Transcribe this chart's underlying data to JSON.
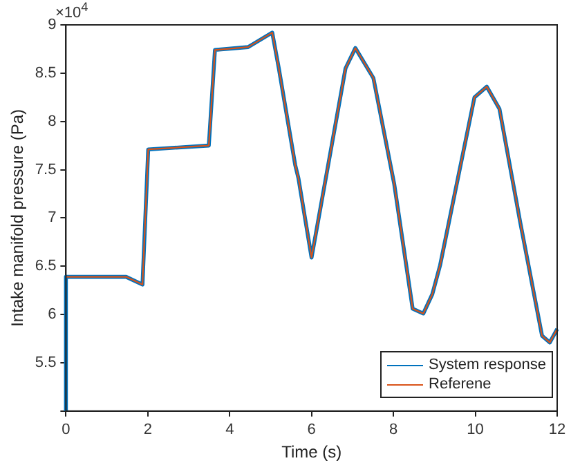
{
  "chart_data": {
    "type": "line",
    "xlabel": "Time (s)",
    "ylabel": "Intake manifold pressure (Pa)",
    "annotations": [
      "×10$^{4}$"
    ],
    "xlim": [
      0,
      12
    ],
    "xticks": [
      0,
      2,
      4,
      6,
      8,
      10,
      12
    ],
    "ylim": [
      5,
      9
    ],
    "yticks": [
      {
        "value": 5,
        "label": null
      },
      5.5,
      6,
      6.5,
      7,
      7.5,
      8,
      8.5,
      9
    ],
    "grid": false,
    "legend": "bottom right",
    "marker": "none",
    "line_style": "solid",
    "series": [
      {
        "name": "System response",
        "color": "#0072bd",
        "x": [
          0,
          0,
          1.47,
          1.87,
          2.01,
          3.49,
          3.64,
          4.45,
          5.04,
          5.2,
          5.6,
          5.68,
          6.0,
          6.83,
          7.07,
          7.51,
          8.02,
          8.47,
          8.73,
          8.95,
          9.14,
          9.98,
          10.28,
          10.59,
          11.1,
          11.63,
          11.82,
          12
        ],
        "values": [
          5,
          6.39,
          6.39,
          6.31,
          7.71,
          7.75,
          8.74,
          8.77,
          8.92,
          8.55,
          7.55,
          7.41,
          6.59,
          8.55,
          8.76,
          8.45,
          7.35,
          6.06,
          6.01,
          6.21,
          6.51,
          8.25,
          8.36,
          8.13,
          6.95,
          5.78,
          5.71,
          5.85
        ]
      },
      {
        "name": "Referene",
        "color": "#d95319",
        "x": [
          0,
          1.47,
          1.87,
          2.01,
          3.49,
          3.64,
          4.45,
          5.04,
          5.2,
          5.6,
          5.68,
          6.0,
          6.83,
          7.07,
          7.51,
          8.02,
          8.47,
          8.73,
          8.95,
          9.14,
          9.98,
          10.28,
          10.59,
          11.1,
          11.63,
          11.82,
          12
        ],
        "values": [
          6.39,
          6.39,
          6.31,
          7.71,
          7.75,
          8.74,
          8.77,
          8.92,
          8.55,
          7.55,
          7.41,
          6.59,
          8.55,
          8.76,
          8.45,
          7.35,
          6.06,
          6.01,
          6.21,
          6.51,
          8.25,
          8.36,
          8.13,
          6.95,
          5.78,
          5.71,
          5.85
        ]
      }
    ]
  }
}
